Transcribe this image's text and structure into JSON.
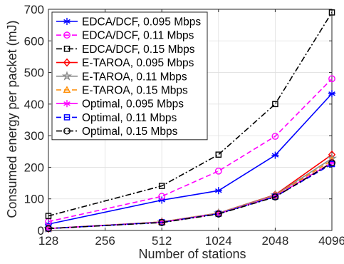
{
  "chart_data": {
    "type": "line",
    "xlabel": "Number of stations",
    "ylabel": "Consumed energy per packet (mJ)",
    "x_scale": "log2",
    "xlim": [
      128,
      4096
    ],
    "ylim": [
      0,
      700
    ],
    "x_ticks": [
      128,
      256,
      512,
      1024,
      2048,
      4096
    ],
    "y_ticks": [
      0,
      100,
      200,
      300,
      400,
      500,
      600,
      700
    ],
    "grid": true,
    "legend_position": "top-left",
    "x": [
      128,
      512,
      1024,
      2048,
      4096
    ],
    "series": [
      {
        "name": "EDCA/DCF, 0.095 Mbps",
        "values": [
          20,
          96,
          126,
          238,
          433
        ],
        "color": "#0000ff",
        "dash": "solid",
        "marker": "asterisk"
      },
      {
        "name": "EDCA/DCF, 0.11 Mbps",
        "values": [
          28,
          108,
          188,
          298,
          480
        ],
        "color": "#ff00ff",
        "dash": "dashed",
        "marker": "circle"
      },
      {
        "name": "EDCA/DCF, 0.15 Mbps",
        "values": [
          46,
          141,
          240,
          400,
          690
        ],
        "color": "#000000",
        "dash": "dashdot",
        "marker": "square"
      },
      {
        "name": "E-TAROA, 0.095 Mbps",
        "values": [
          6,
          27,
          55,
          113,
          240
        ],
        "color": "#ff0000",
        "dash": "solid",
        "marker": "diamond"
      },
      {
        "name": "E-TAROA, 0.11 Mbps",
        "values": [
          6,
          27,
          55,
          112,
          228
        ],
        "color": "#8c8c8c",
        "dash": "solid",
        "marker": "star"
      },
      {
        "name": "E-TAROA, 0.15 Mbps",
        "values": [
          6,
          27,
          54,
          110,
          222
        ],
        "color": "#ff8c00",
        "dash": "dashed",
        "marker": "triangle"
      },
      {
        "name": "Optimal, 0.095 Mbps",
        "values": [
          6,
          26,
          53,
          108,
          215
        ],
        "color": "#ff00ff",
        "dash": "solid",
        "marker": "asterisk"
      },
      {
        "name": "Optimal, 0.11 Mbps",
        "values": [
          6,
          26,
          53,
          107,
          210
        ],
        "color": "#0000ff",
        "dash": "dashed",
        "marker": "square"
      },
      {
        "name": "Optimal, 0.15 Mbps",
        "values": [
          6,
          25,
          52,
          106,
          214
        ],
        "color": "#000000",
        "dash": "dashdot",
        "marker": "circle"
      }
    ]
  }
}
